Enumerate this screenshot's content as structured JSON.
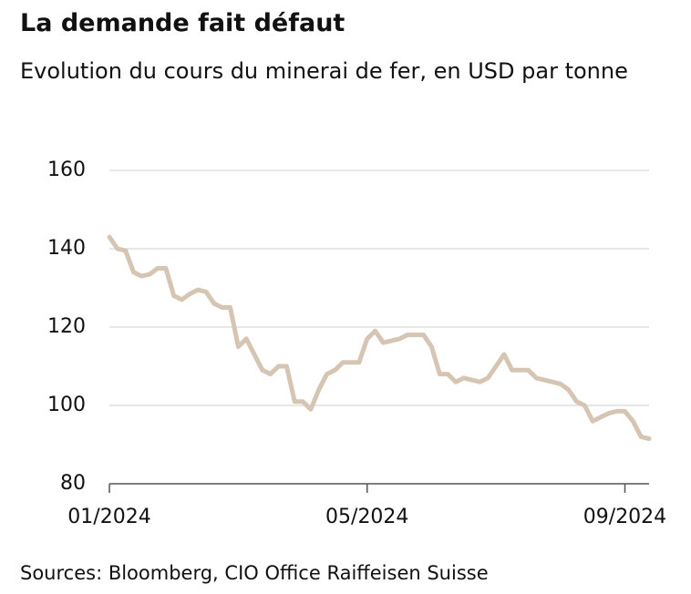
{
  "chart_data": {
    "type": "line",
    "title": "La demande fait défaut",
    "subtitle": "Evolution du cours du minerai de fer, en USD par tonne",
    "source": "Sources: Bloomberg, CIO Office Raiffeisen Suisse",
    "categories": [
      "01/2024",
      null,
      null,
      null,
      null,
      null,
      null,
      null,
      null,
      null,
      null,
      null,
      null,
      null,
      null,
      null,
      null,
      null,
      null,
      null,
      null,
      null,
      null,
      null,
      null,
      null,
      null,
      null,
      null,
      null,
      null,
      null,
      "05/2024",
      null,
      null,
      null,
      null,
      null,
      null,
      null,
      null,
      null,
      null,
      null,
      null,
      null,
      null,
      null,
      null,
      null,
      null,
      null,
      null,
      null,
      null,
      null,
      null,
      null,
      null,
      null,
      null,
      null,
      null,
      null,
      "09/2024",
      null,
      null,
      null
    ],
    "series": [
      {
        "color": "#d5c5b2",
        "values": [
          143,
          140,
          139.5,
          134,
          133,
          133.5,
          135,
          135,
          128,
          127,
          128.5,
          129.5,
          129,
          126,
          125,
          125,
          115,
          117,
          113,
          109,
          108,
          110,
          110,
          101,
          101,
          99,
          104,
          108,
          109,
          111,
          111,
          111,
          117,
          119,
          116,
          116.5,
          117,
          118,
          118,
          118,
          115,
          108,
          108,
          106,
          107,
          106.5,
          106,
          107,
          110,
          113,
          109,
          109,
          109,
          107,
          106.5,
          106,
          105.5,
          104,
          101,
          100,
          96,
          97,
          98,
          98.5,
          98.5,
          96,
          92,
          91.5
        ]
      }
    ],
    "ylim": [
      80,
      160
    ],
    "yticks": [
      80,
      100,
      120,
      140,
      160
    ],
    "grid": true
  }
}
